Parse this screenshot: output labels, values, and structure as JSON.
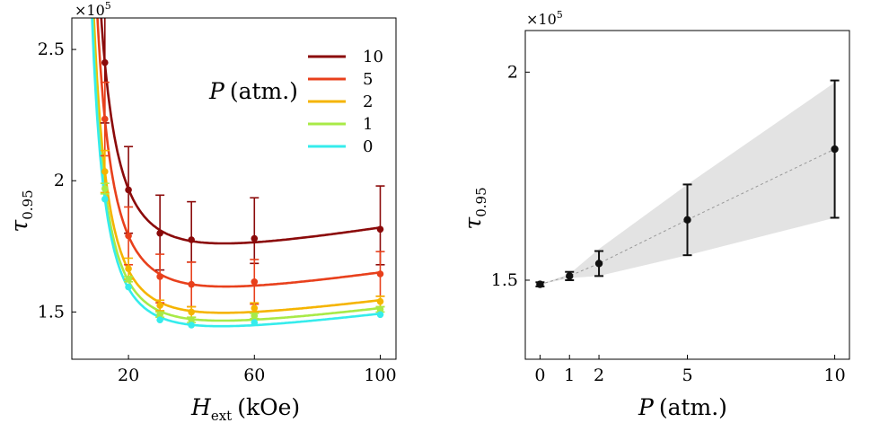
{
  "chart_data": [
    {
      "type": "line",
      "panel": "left",
      "multiplier": "×10^5",
      "multiplier_base": "×10",
      "multiplier_exp": "5",
      "xlabel_main": "H",
      "xlabel_sub": "ext",
      "xlabel_unit": "(kOe)",
      "ylabel_main": "τ",
      "ylabel_sub": "0.95",
      "xlim": [
        2,
        105
      ],
      "ylim": [
        1.32,
        2.62
      ],
      "xticks": [
        20,
        60,
        100
      ],
      "xticklabels": [
        "20",
        "60",
        "100"
      ],
      "yticks": [
        1.5,
        2,
        2.5
      ],
      "yticklabels": [
        "1.5",
        "2",
        "2.5"
      ],
      "legend_title_var": "P",
      "legend_title_unit": "(atm.)",
      "x": [
        12.5,
        20,
        30,
        40,
        60,
        100
      ],
      "series": [
        {
          "name": "10",
          "color": "#8b0a0a",
          "values": [
            2.45,
            1.965,
            1.8,
            1.775,
            1.78,
            1.815
          ],
          "err_hi": [
            0.23,
            0.165,
            0.145,
            0.145,
            0.155,
            0.165
          ],
          "err_lo": [
            0.23,
            0.165,
            0.14,
            0.085,
            0.095,
            0.135
          ]
        },
        {
          "name": "5",
          "color": "#e8401c",
          "values": [
            2.235,
            1.79,
            1.635,
            1.605,
            1.615,
            1.645
          ],
          "err_hi": [
            0.14,
            0.11,
            0.085,
            0.085,
            0.085,
            0.085
          ],
          "err_lo": [
            0.14,
            0.11,
            0.1,
            0.085,
            0.085,
            0.085
          ]
        },
        {
          "name": "2",
          "color": "#f5b400",
          "values": [
            2.035,
            1.665,
            1.525,
            1.5,
            1.515,
            1.54
          ],
          "err_hi": [
            0.08,
            0.04,
            0.02,
            0.02,
            0.02,
            0.02
          ],
          "err_lo": [
            0.08,
            0.04,
            0.02,
            0.02,
            0.02,
            0.02
          ]
        },
        {
          "name": "1",
          "color": "#a8ea47",
          "values": [
            1.97,
            1.625,
            1.49,
            1.47,
            1.485,
            1.51
          ],
          "err_hi": [
            0.02,
            0.01,
            0.01,
            0.01,
            0.01,
            0.01
          ],
          "err_lo": [
            0.02,
            0.01,
            0.01,
            0.01,
            0.01,
            0.01
          ]
        },
        {
          "name": "0",
          "color": "#35ecec",
          "values": [
            1.93,
            1.595,
            1.47,
            1.45,
            1.46,
            1.49
          ],
          "err_hi": [
            0,
            0,
            0,
            0,
            0,
            0
          ],
          "err_lo": [
            0,
            0,
            0,
            0,
            0,
            0
          ]
        }
      ]
    },
    {
      "type": "scatter",
      "panel": "right",
      "multiplier": "×10^5",
      "multiplier_base": "×10",
      "multiplier_exp": "5",
      "xlabel_main": "P",
      "xlabel_unit": "(atm.)",
      "ylabel_main": "τ",
      "ylabel_sub": "0.95",
      "xlim": [
        -0.5,
        10.5
      ],
      "ylim": [
        1.31,
        2.1
      ],
      "xticks": [
        0,
        1,
        2,
        5,
        10
      ],
      "xticklabels": [
        "0",
        "1",
        "2",
        "5",
        "10"
      ],
      "yticks": [
        1.5,
        2
      ],
      "yticklabels": [
        "1.5",
        "2"
      ],
      "x": [
        0,
        1,
        2,
        5,
        10
      ],
      "values": [
        1.49,
        1.51,
        1.54,
        1.645,
        1.815
      ],
      "err_hi": [
        0.005,
        0.01,
        0.03,
        0.085,
        0.165
      ],
      "err_lo": [
        0.005,
        0.01,
        0.03,
        0.085,
        0.165
      ],
      "band_upper": [
        1.49,
        1.515,
        1.575,
        1.73,
        1.975
      ],
      "band_lower": [
        1.49,
        1.505,
        1.51,
        1.56,
        1.65
      ],
      "color": "#111111",
      "band_color": "#e3e3e3"
    }
  ]
}
